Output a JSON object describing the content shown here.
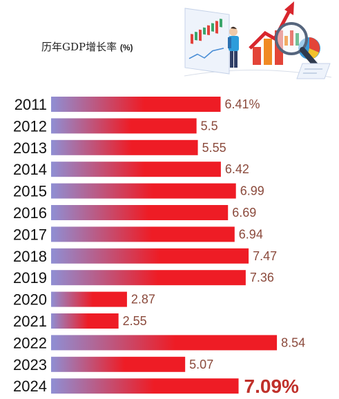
{
  "chart_data": {
    "type": "bar",
    "orientation": "horizontal",
    "title": "历年GDP增长率",
    "title_unit": "(%)",
    "categories": [
      "2011",
      "2012",
      "2013",
      "2014",
      "2015",
      "2016",
      "2017",
      "2018",
      "2019",
      "2020",
      "2021",
      "2022",
      "2023",
      "2024"
    ],
    "values": [
      6.41,
      5.5,
      5.55,
      6.42,
      6.99,
      6.69,
      6.94,
      7.47,
      7.36,
      2.87,
      2.55,
      8.54,
      5.07,
      7.09
    ],
    "value_labels": [
      "6.41%",
      "5.5",
      "5.55",
      "6.42",
      "6.99",
      "6.69",
      "6.94",
      "7.47",
      "7.36",
      "2.87",
      "2.55",
      "8.54",
      "5.07",
      "7.09%"
    ],
    "highlight_category": "2024",
    "grid": false,
    "legend": "none",
    "colors": {
      "bar_start": "#8f8fd4",
      "bar_end": "#ee1c25",
      "value_label": "#8b4a3c",
      "highlight_label": "#c0302a",
      "year_label": "#111111"
    }
  },
  "illustration": {
    "icon": "business-analytics-illustration"
  }
}
